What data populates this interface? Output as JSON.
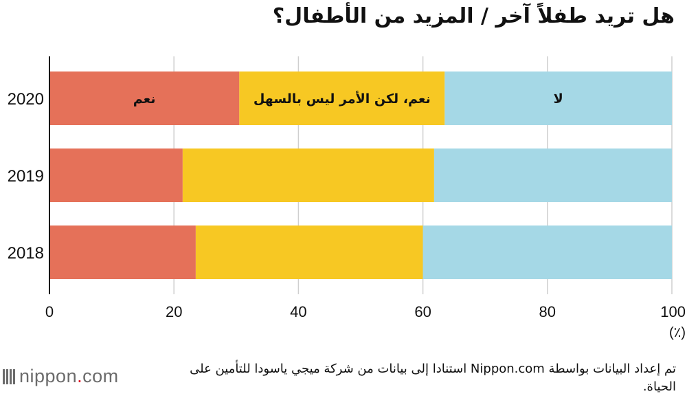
{
  "title": "هل تريد طفلاً آخر / المزيد من الأطفال؟",
  "source_note": "تم إعداد البيانات بواسطة Nippon.com استنادا إلى بيانات من شركة ميجي ياسودا للتأمين على الحياة.",
  "logo": {
    "text_before_dot": "nippon",
    "dot": ".",
    "text_after_dot": "com"
  },
  "chart_data": {
    "type": "bar",
    "orientation": "horizontal",
    "stacked": true,
    "categories": [
      "2020",
      "2019",
      "2018"
    ],
    "series": [
      {
        "name": "نعم",
        "values": [
          30.5,
          21.4,
          23.5
        ],
        "color": "#e57159"
      },
      {
        "name": "نعم، لكن الأمر ليس بالسهل",
        "values": [
          33.0,
          40.4,
          36.5
        ],
        "color": "#f7c823"
      },
      {
        "name": "لا",
        "values": [
          36.5,
          38.2,
          40.0
        ],
        "color": "#a5d8e6"
      }
    ],
    "xlim": [
      0,
      100
    ],
    "x_ticks": [
      0,
      20,
      40,
      60,
      80,
      100
    ],
    "x_unit": "(٪)",
    "grid": true,
    "legend": "labels inside top bar"
  }
}
